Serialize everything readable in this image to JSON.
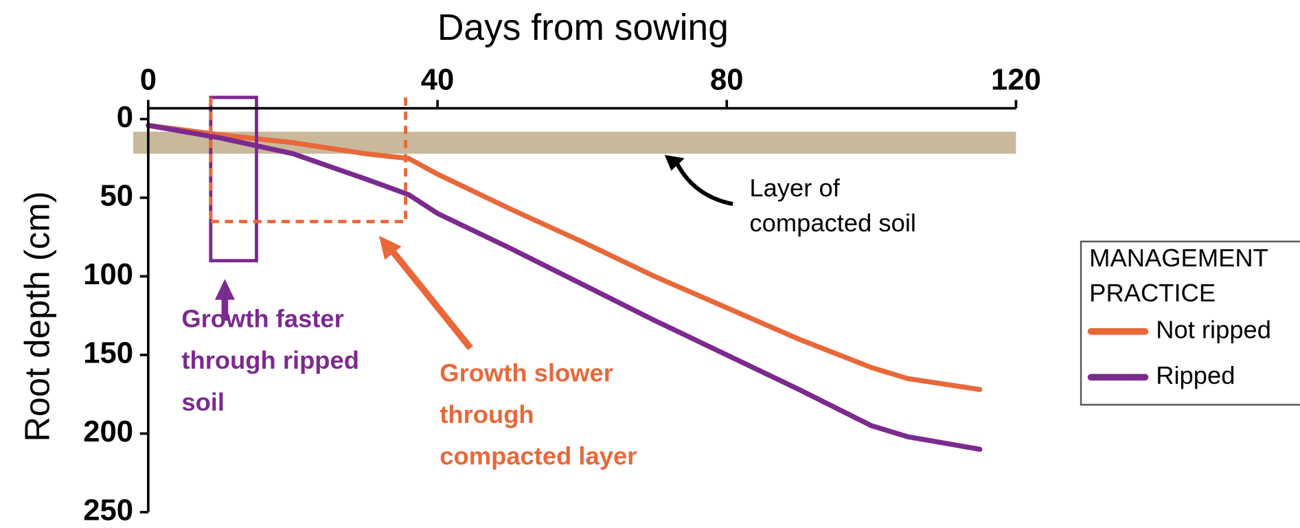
{
  "chart_data": {
    "type": "line",
    "title": "Days from sowing",
    "y_label": "Root depth (cm)",
    "x": [
      0,
      10,
      20,
      30,
      36,
      40,
      50,
      60,
      70,
      80,
      90,
      100,
      105,
      115
    ],
    "series": [
      {
        "name": "Not ripped",
        "color": "#e8683a",
        "values": [
          4,
          10,
          15,
          22,
          25,
          35,
          57,
          78,
          100,
          120,
          140,
          158,
          165,
          172
        ]
      },
      {
        "name": "Ripped",
        "color": "#7b2a8e",
        "values": [
          4,
          12,
          22,
          38,
          48,
          60,
          82,
          105,
          128,
          150,
          172,
          195,
          202,
          210
        ]
      }
    ],
    "xlim": [
      0,
      120
    ],
    "xticks": [
      0,
      40,
      80,
      120
    ],
    "ylim": [
      0,
      250
    ],
    "yticks": [
      0,
      50,
      100,
      150,
      200,
      250
    ],
    "y_inverted": true,
    "legend_title": [
      "MANAGEMENT",
      "PRACTICE"
    ],
    "compacted_layer": {
      "label": [
        "Layer of",
        "compacted soil"
      ],
      "depth": [
        8,
        22
      ],
      "color": "#c9b99a"
    },
    "annotations": [
      {
        "lines": [
          "Growth faster",
          "through ripped",
          "soil"
        ],
        "color": "#7b2a8e"
      },
      {
        "lines": [
          "Growth slower",
          "through",
          "compacted layer"
        ],
        "color": "#e8683a"
      }
    ]
  }
}
